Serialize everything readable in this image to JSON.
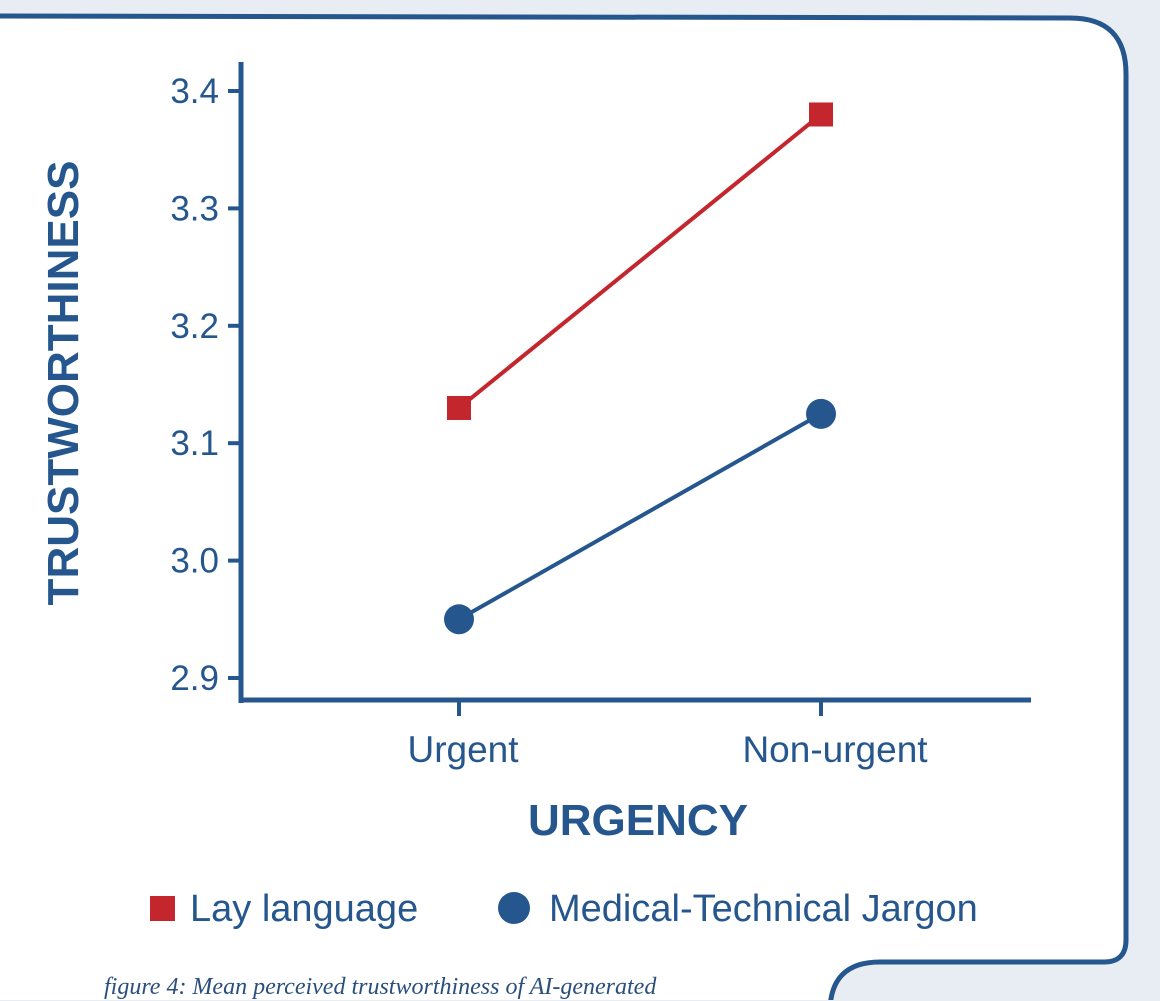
{
  "chart_data": {
    "type": "line",
    "x_label": "URGENCY",
    "y_label": "TRUSTWORTHINESS",
    "categories": [
      "Urgent",
      "Non-urgent"
    ],
    "y_ticks": [
      "2.9",
      "3.0",
      "3.1",
      "3.2",
      "3.3",
      "3.4"
    ],
    "y_range": [
      2.9,
      3.4
    ],
    "grid": false,
    "legend_position": "bottom",
    "series": [
      {
        "name": "Lay language",
        "values": [
          3.13,
          3.38
        ],
        "color": "#c4262e",
        "marker": "square"
      },
      {
        "name": "Medical-Technical Jargon",
        "values": [
          2.95,
          3.125
        ],
        "color": "#25578e",
        "marker": "circle"
      }
    ]
  },
  "caption": "figure 4: Mean perceived trustworthiness of AI-generated",
  "colors": {
    "frame": "#25578e",
    "panel": "#ffffff",
    "background": "#e8edf3",
    "text": "#25578e"
  }
}
